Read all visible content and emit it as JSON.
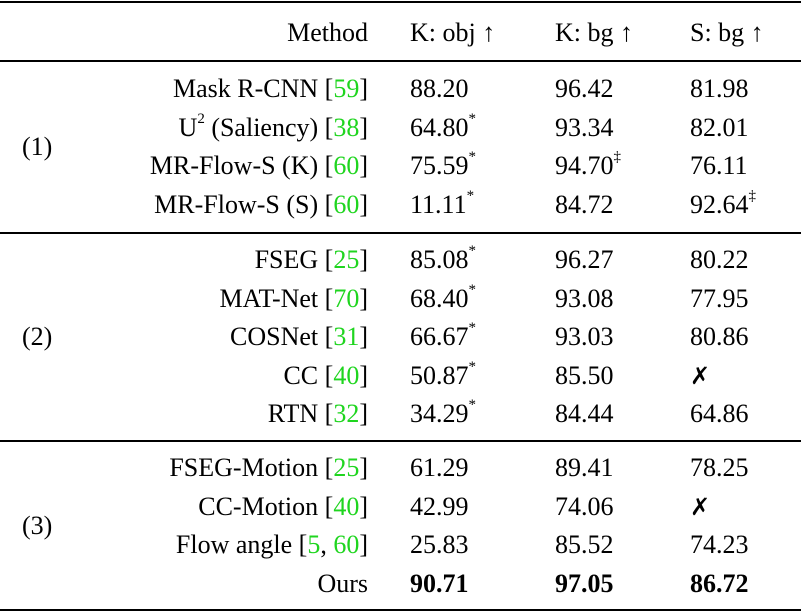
{
  "header": {
    "method": "Method",
    "cols": [
      "K: obj ↑",
      "K: bg ↑",
      "S: bg ↑"
    ]
  },
  "groups": [
    {
      "label": "(1)",
      "rows": [
        {
          "name": "Mask R-CNN",
          "sup": "",
          "suffix": "",
          "refs": [
            "59"
          ],
          "vals": [
            {
              "v": "88.20",
              "m": ""
            },
            {
              "v": "96.42",
              "m": ""
            },
            {
              "v": "81.98",
              "m": ""
            }
          ]
        },
        {
          "name": "U",
          "sup": "2",
          "suffix": " (Saliency)",
          "refs": [
            "38"
          ],
          "vals": [
            {
              "v": "64.80",
              "m": "*"
            },
            {
              "v": "93.34",
              "m": ""
            },
            {
              "v": "82.01",
              "m": ""
            }
          ]
        },
        {
          "name": "MR-Flow-S (K) ",
          "sup": "",
          "suffix": "",
          "refs": [
            "60"
          ],
          "vals": [
            {
              "v": "75.59",
              "m": "*"
            },
            {
              "v": "94.70",
              "m": "‡"
            },
            {
              "v": "76.11",
              "m": ""
            }
          ]
        },
        {
          "name": "MR-Flow-S (S) ",
          "sup": "",
          "suffix": "",
          "refs": [
            "60"
          ],
          "vals": [
            {
              "v": "11.11",
              "m": "*"
            },
            {
              "v": "84.72",
              "m": ""
            },
            {
              "v": "92.64",
              "m": "‡"
            }
          ]
        }
      ]
    },
    {
      "label": "(2)",
      "rows": [
        {
          "name": "FSEG",
          "sup": "",
          "suffix": "",
          "refs": [
            "25"
          ],
          "vals": [
            {
              "v": "85.08",
              "m": "*"
            },
            {
              "v": "96.27",
              "m": ""
            },
            {
              "v": "80.22",
              "m": ""
            }
          ]
        },
        {
          "name": "MAT-Net",
          "sup": "",
          "suffix": "",
          "refs": [
            "70"
          ],
          "vals": [
            {
              "v": "68.40",
              "m": "*"
            },
            {
              "v": "93.08",
              "m": ""
            },
            {
              "v": "77.95",
              "m": ""
            }
          ]
        },
        {
          "name": "COSNet",
          "sup": "",
          "suffix": "",
          "refs": [
            "31"
          ],
          "vals": [
            {
              "v": "66.67",
              "m": "*"
            },
            {
              "v": "93.03",
              "m": ""
            },
            {
              "v": "80.86",
              "m": ""
            }
          ]
        },
        {
          "name": "CC",
          "sup": "",
          "suffix": "",
          "refs": [
            "40"
          ],
          "vals": [
            {
              "v": "50.87",
              "m": "*"
            },
            {
              "v": "85.50",
              "m": ""
            },
            {
              "v": "✗",
              "m": "",
              "x": true
            }
          ]
        },
        {
          "name": "RTN",
          "sup": "",
          "suffix": "",
          "refs": [
            "32"
          ],
          "vals": [
            {
              "v": "34.29",
              "m": "*"
            },
            {
              "v": "84.44",
              "m": ""
            },
            {
              "v": "64.86",
              "m": ""
            }
          ]
        }
      ]
    },
    {
      "label": "(3)",
      "rows": [
        {
          "name": "FSEG-Motion",
          "sup": "",
          "suffix": "",
          "refs": [
            "25"
          ],
          "vals": [
            {
              "v": "61.29",
              "m": ""
            },
            {
              "v": "89.41",
              "m": ""
            },
            {
              "v": "78.25",
              "m": ""
            }
          ]
        },
        {
          "name": "CC-Motion",
          "sup": "",
          "suffix": "",
          "refs": [
            "40"
          ],
          "vals": [
            {
              "v": "42.99",
              "m": ""
            },
            {
              "v": "74.06",
              "m": ""
            },
            {
              "v": "✗",
              "m": "",
              "x": true
            }
          ]
        },
        {
          "name": "Flow angle",
          "sup": "",
          "suffix": "",
          "refs": [
            "5",
            "60"
          ],
          "vals": [
            {
              "v": "25.83",
              "m": ""
            },
            {
              "v": "85.52",
              "m": ""
            },
            {
              "v": "74.23",
              "m": ""
            }
          ]
        },
        {
          "name": "Ours",
          "sup": "",
          "suffix": "",
          "refs": [],
          "bold": true,
          "vals": [
            {
              "v": "90.71",
              "m": ""
            },
            {
              "v": "97.05",
              "m": ""
            },
            {
              "v": "86.72",
              "m": ""
            }
          ]
        }
      ]
    }
  ]
}
